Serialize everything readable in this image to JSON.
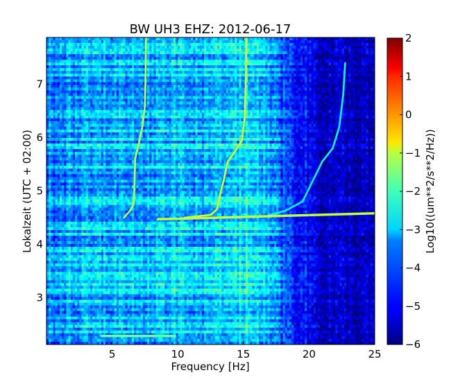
{
  "chart_data": {
    "type": "heatmap",
    "title": "BW UH3 EHZ: 2012-06-17",
    "xlabel": "Frequency [Hz]",
    "ylabel": "Lokalzeit (UTC + 02:00)",
    "xlim": [
      0,
      25
    ],
    "ylim": [
      7.88,
      2.12
    ],
    "y_inverted": true,
    "x_ticks": [
      5,
      10,
      15,
      20,
      25
    ],
    "y_ticks": [
      3,
      4,
      5,
      6,
      7
    ],
    "grid": true,
    "colorbar": {
      "label": "Log10((um**2/s**2/Hz))",
      "range": [
        -6,
        2
      ],
      "ticks": [
        2,
        1,
        0,
        -1,
        -2,
        -3,
        -4,
        -5,
        -6
      ],
      "tick_labels": [
        "2",
        "1",
        "0",
        "−1",
        "−2",
        "−3",
        "−4",
        "−5",
        "−6"
      ],
      "colormap": "jet"
    },
    "background_level_by_frequency": [
      {
        "f": 0,
        "level": -3.9
      },
      {
        "f": 2,
        "level": -3.6
      },
      {
        "f": 5,
        "level": -3.4
      },
      {
        "f": 8,
        "level": -3.6
      },
      {
        "f": 10,
        "level": -3.2
      },
      {
        "f": 12,
        "level": -3.6
      },
      {
        "f": 14,
        "level": -3.3
      },
      {
        "f": 15.2,
        "level": -2.9
      },
      {
        "f": 16.5,
        "level": -3.3
      },
      {
        "f": 18,
        "level": -4.3
      },
      {
        "f": 20,
        "level": -5.0
      },
      {
        "f": 21,
        "level": -5.4
      },
      {
        "f": 25,
        "level": -5.6
      }
    ],
    "series": [
      {
        "level": -1.5,
        "points": [
          [
            5.9,
            4.5
          ],
          [
            6.4,
            4.64
          ],
          [
            6.65,
            4.76
          ],
          [
            6.7,
            5.1
          ],
          [
            6.75,
            5.6
          ],
          [
            7.0,
            5.86
          ],
          [
            7.3,
            6.2
          ],
          [
            7.5,
            6.6
          ],
          [
            7.55,
            7.2
          ],
          [
            7.58,
            7.88
          ]
        ]
      },
      {
        "level": -1.3,
        "points": [
          [
            10.5,
            4.5
          ],
          [
            12.5,
            4.55
          ],
          [
            13.0,
            4.66
          ],
          [
            13.2,
            4.9
          ],
          [
            13.5,
            5.2
          ],
          [
            13.8,
            5.55
          ],
          [
            14.3,
            5.72
          ],
          [
            14.9,
            5.95
          ],
          [
            15.1,
            6.4
          ],
          [
            15.18,
            7.0
          ],
          [
            15.22,
            7.88
          ]
        ]
      },
      {
        "level": -3.0,
        "points": [
          [
            17.0,
            4.55
          ],
          [
            18.2,
            4.63
          ],
          [
            19.5,
            4.8
          ],
          [
            20.3,
            5.2
          ],
          [
            21.0,
            5.55
          ],
          [
            21.8,
            5.8
          ],
          [
            22.3,
            6.2
          ],
          [
            22.6,
            6.8
          ],
          [
            22.75,
            7.4
          ]
        ]
      },
      {
        "level": -1.5,
        "points": [
          [
            8.5,
            4.47
          ],
          [
            25,
            4.58
          ]
        ]
      },
      {
        "level": -2.2,
        "points": [
          [
            4.2,
            2.28
          ],
          [
            9.8,
            2.28
          ]
        ]
      }
    ]
  }
}
